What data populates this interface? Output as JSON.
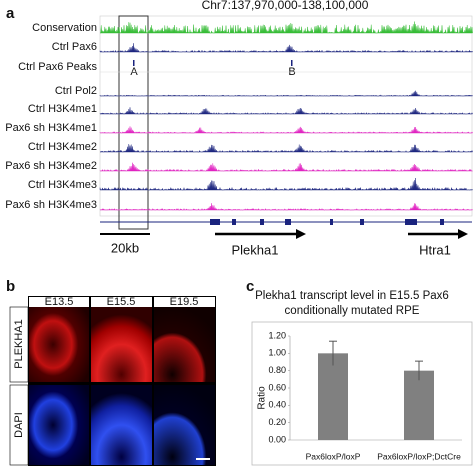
{
  "panel_a": {
    "letter": "a",
    "title": "Chr7:137,970,000-138,100,000",
    "tracks": [
      {
        "label": "Conservation",
        "color": "#33bb33"
      },
      {
        "label": "Ctrl Pax6",
        "color": "#1a237e"
      },
      {
        "label": "Ctrl Pax6 Peaks",
        "color": "#1a237e"
      },
      {
        "label": "Ctrl Pol2",
        "color": "#1a237e"
      },
      {
        "label": "Ctrl H3K4me1",
        "color": "#1a237e"
      },
      {
        "label": "Pax6 sh H3K4me1",
        "color": "#e020c0"
      },
      {
        "label": "Ctrl H3K4me2",
        "color": "#1a237e"
      },
      {
        "label": "Pax6 sh H3K4me2",
        "color": "#e020c0"
      },
      {
        "label": "Ctrl H3K4me3",
        "color": "#1a237e"
      },
      {
        "label": "Pax6 sh H3K4me3",
        "color": "#e020c0"
      }
    ],
    "peak_labels": [
      "A",
      "B"
    ],
    "scale": "20kb",
    "genes": [
      "Plekha1",
      "Htra1"
    ]
  },
  "panel_b": {
    "letter": "b",
    "columns": [
      "E13.5",
      "E15.5",
      "E19.5"
    ],
    "rows": [
      "PLEKHA1",
      "DAPI"
    ]
  },
  "panel_c": {
    "letter": "c"
  },
  "chart_data": {
    "type": "bar",
    "title": [
      "Plekha1 transcript level in E15.5 Pax6",
      "conditionally mutated RPE"
    ],
    "y_label": "Ratio",
    "categories": [
      "Pax6loxP/loxP",
      "Pax6loxP/loxP;DctCre"
    ],
    "values": [
      1.0,
      0.8
    ],
    "errors": [
      0.14,
      0.11
    ],
    "color": "#808080",
    "ylim": [
      0,
      1.2
    ],
    "yticks": [
      {
        "value": 0,
        "label": "0.00"
      },
      {
        "value": 0.2,
        "label": "0.20"
      },
      {
        "value": 0.4,
        "label": "0.40"
      },
      {
        "value": 0.6,
        "label": "0.60"
      },
      {
        "value": 0.8,
        "label": "0.80"
      },
      {
        "value": 1.0,
        "label": "1.00"
      },
      {
        "value": 1.2,
        "label": "1.20"
      }
    ]
  }
}
